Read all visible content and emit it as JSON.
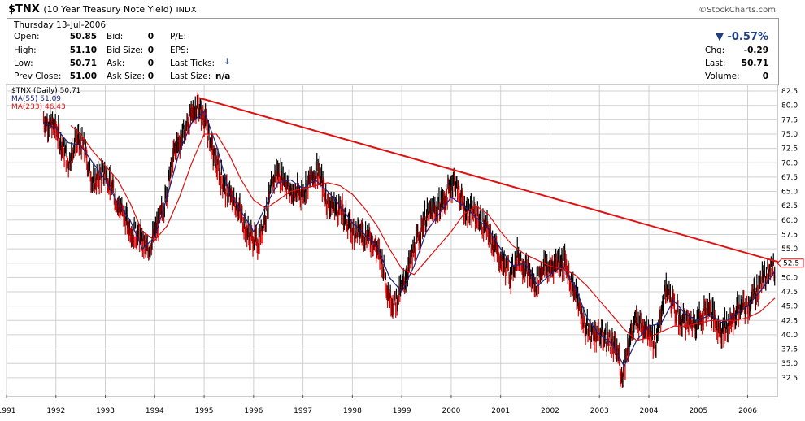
{
  "header": {
    "symbol": "$TNX",
    "name": "(10 Year Treasury Note Yield)",
    "exchange": "INDX",
    "brand": "©StockCharts.com"
  },
  "quote": {
    "date": "Thursday  13-Jul-2006",
    "open_label": "Open:",
    "open": "50.85",
    "high_label": "High:",
    "high": "51.10",
    "low_label": "Low:",
    "low": "50.71",
    "prev_close_label": "Prev Close:",
    "prev_close": "51.00",
    "bid_label": "Bid:",
    "bid": "0",
    "bid_size_label": "Bid Size:",
    "bid_size": "0",
    "ask_label": "Ask:",
    "ask": "0",
    "ask_size_label": "Ask Size:",
    "ask_size": "0",
    "pe_label": "P/E:",
    "eps_label": "EPS:",
    "last_ticks_label": "Last Ticks:",
    "last_size_label": "Last Size:",
    "last_size": "n/a",
    "change_pct": "▼ -0.57%",
    "chg_label": "Chg:",
    "chg": "-0.29",
    "last_label": "Last:",
    "last": "50.71",
    "volume_label": "Volume:",
    "volume": "0"
  },
  "legend": {
    "price": "$TNX (Daily) 50.71",
    "ma55": "MA(55) 51.09",
    "ma233": "MA(233) 46.43"
  },
  "colors": {
    "price_up": "#000000",
    "price_down": "#cc0000",
    "ma55": "#1a237e",
    "ma233": "#dd1111",
    "trendline": "#e01010",
    "last_marker": "#e01010",
    "grid": "#d0d0d0",
    "plot_bg": "#ffffff"
  },
  "chart_data": {
    "type": "line",
    "x_axis_label": "",
    "y_axis_label": "",
    "ylim": [
      29.5,
      83.5
    ],
    "xlim": [
      1991.0,
      2006.6
    ],
    "y_ticks": [
      32.5,
      35.0,
      37.5,
      40.0,
      42.5,
      45.0,
      47.5,
      50.0,
      52.5,
      55.0,
      57.5,
      60.0,
      62.5,
      65.0,
      67.5,
      70.0,
      72.5,
      75.0,
      77.5,
      80.0,
      82.5
    ],
    "x_ticks": [
      {
        "label": "1991",
        "x": 1991.0
      },
      {
        "label": "1992",
        "x": 1992.0
      },
      {
        "label": "1993",
        "x": 1993.0
      },
      {
        "label": "1994",
        "x": 1994.0
      },
      {
        "label": "1995",
        "x": 1995.0
      },
      {
        "label": "1996",
        "x": 1996.0
      },
      {
        "label": "1997",
        "x": 1997.0
      },
      {
        "label": "1998",
        "x": 1998.0
      },
      {
        "label": "1999",
        "x": 1999.0
      },
      {
        "label": "2000",
        "x": 2000.0
      },
      {
        "label": "2001",
        "x": 2001.0
      },
      {
        "label": "2002",
        "x": 2002.0
      },
      {
        "label": "2003",
        "x": 2003.0
      },
      {
        "label": "2004",
        "x": 2004.0
      },
      {
        "label": "2005",
        "x": 2005.0
      },
      {
        "label": "2006",
        "x": 2006.0
      }
    ],
    "last_value_label": "52.5",
    "last_value": 52.5,
    "series": [
      {
        "name": "$TNX",
        "x": [
          1991.75,
          1992.0,
          1992.25,
          1992.4,
          1992.55,
          1992.75,
          1993.0,
          1993.25,
          1993.5,
          1993.75,
          1993.85,
          1994.0,
          1994.2,
          1994.4,
          1994.6,
          1994.85,
          1995.0,
          1995.2,
          1995.45,
          1995.7,
          1995.9,
          1996.1,
          1996.3,
          1996.45,
          1996.6,
          1996.8,
          1997.0,
          1997.15,
          1997.3,
          1997.5,
          1997.8,
          1998.0,
          1998.2,
          1998.4,
          1998.6,
          1998.75,
          1998.85,
          1999.0,
          1999.2,
          1999.45,
          1999.7,
          1999.9,
          2000.05,
          2000.3,
          2000.5,
          2000.75,
          2001.0,
          2001.2,
          2001.35,
          2001.5,
          2001.7,
          2001.85,
          2002.0,
          2002.15,
          2002.3,
          2002.5,
          2002.7,
          2002.8,
          2003.0,
          2003.2,
          2003.4,
          2003.45,
          2003.6,
          2003.75,
          2004.0,
          2004.15,
          2004.3,
          2004.4,
          2004.6,
          2004.8,
          2005.0,
          2005.2,
          2005.45,
          2005.7,
          2005.8,
          2006.0,
          2006.2,
          2006.35,
          2006.45,
          2006.55
        ],
        "y": [
          77.5,
          76.0,
          70.0,
          74.0,
          73.0,
          66.5,
          68.5,
          63.0,
          58.5,
          56.5,
          54.5,
          57.5,
          63.0,
          72.0,
          75.5,
          80.0,
          78.0,
          71.0,
          65.0,
          62.0,
          57.5,
          56.0,
          63.0,
          68.5,
          67.5,
          64.5,
          65.0,
          67.0,
          69.0,
          63.0,
          61.5,
          58.0,
          58.0,
          56.5,
          53.0,
          46.5,
          45.5,
          48.0,
          53.5,
          60.0,
          62.0,
          64.0,
          67.0,
          61.5,
          61.0,
          58.0,
          53.0,
          50.5,
          54.0,
          51.5,
          48.5,
          52.0,
          51.5,
          53.0,
          52.5,
          47.5,
          41.5,
          40.5,
          40.0,
          39.0,
          36.0,
          32.5,
          39.0,
          42.5,
          41.0,
          38.0,
          47.0,
          47.5,
          43.0,
          42.0,
          42.5,
          45.0,
          40.5,
          42.5,
          44.5,
          45.0,
          48.0,
          50.5,
          52.5,
          50.7
        ]
      },
      {
        "name": "MA(55)",
        "x": [
          1991.75,
          1992.0,
          1992.25,
          1992.5,
          1992.75,
          1993.0,
          1993.25,
          1993.5,
          1993.75,
          1994.0,
          1994.25,
          1994.5,
          1994.75,
          1995.0,
          1995.25,
          1995.5,
          1995.75,
          1996.0,
          1996.25,
          1996.5,
          1996.75,
          1997.0,
          1997.25,
          1997.5,
          1997.75,
          1998.0,
          1998.25,
          1998.5,
          1998.75,
          1999.0,
          1999.25,
          1999.5,
          1999.75,
          2000.0,
          2000.25,
          2000.5,
          2000.75,
          2001.0,
          2001.25,
          2001.5,
          2001.75,
          2002.0,
          2002.25,
          2002.5,
          2002.75,
          2003.0,
          2003.25,
          2003.5,
          2003.75,
          2004.0,
          2004.25,
          2004.5,
          2004.75,
          2005.0,
          2005.25,
          2005.5,
          2005.75,
          2006.0,
          2006.25,
          2006.55
        ],
        "y": [
          77.0,
          76.0,
          73.5,
          73.0,
          70.0,
          67.0,
          63.0,
          60.0,
          55.0,
          57.0,
          64.0,
          72.0,
          77.0,
          79.0,
          73.0,
          65.0,
          61.5,
          58.0,
          62.5,
          66.5,
          67.0,
          65.5,
          67.0,
          65.0,
          62.5,
          59.5,
          57.5,
          55.5,
          50.0,
          47.5,
          52.0,
          58.0,
          61.0,
          64.0,
          62.5,
          60.5,
          58.5,
          55.0,
          52.0,
          52.5,
          48.5,
          50.5,
          52.0,
          48.5,
          43.0,
          40.0,
          38.5,
          34.5,
          39.0,
          41.5,
          42.0,
          46.0,
          43.5,
          42.5,
          43.5,
          42.0,
          43.5,
          45.0,
          47.5,
          51.1
        ]
      },
      {
        "name": "MA(233)",
        "x": [
          1992.3,
          1992.5,
          1992.75,
          1993.0,
          1993.25,
          1993.5,
          1993.75,
          1994.0,
          1994.25,
          1994.5,
          1994.75,
          1995.0,
          1995.25,
          1995.5,
          1995.75,
          1996.0,
          1996.25,
          1996.5,
          1996.75,
          1997.0,
          1997.25,
          1997.5,
          1997.75,
          1998.0,
          1998.25,
          1998.5,
          1998.75,
          1999.0,
          1999.25,
          1999.5,
          1999.75,
          2000.0,
          2000.25,
          2000.5,
          2000.75,
          2001.0,
          2001.25,
          2001.5,
          2001.75,
          2002.0,
          2002.25,
          2002.5,
          2002.75,
          2003.0,
          2003.25,
          2003.5,
          2003.75,
          2004.0,
          2004.25,
          2004.5,
          2004.75,
          2005.0,
          2005.25,
          2005.5,
          2005.75,
          2006.0,
          2006.25,
          2006.55
        ],
        "y": [
          76.5,
          75.0,
          72.0,
          69.5,
          67.0,
          63.0,
          58.0,
          56.5,
          59.0,
          64.0,
          70.0,
          75.0,
          75.0,
          71.5,
          67.0,
          63.5,
          62.0,
          63.5,
          65.0,
          65.5,
          66.0,
          66.5,
          66.0,
          64.5,
          62.0,
          59.0,
          55.0,
          51.5,
          50.5,
          53.0,
          55.5,
          58.0,
          61.0,
          62.5,
          61.0,
          58.0,
          55.5,
          54.0,
          53.0,
          52.0,
          51.5,
          50.5,
          48.5,
          46.0,
          43.5,
          41.0,
          39.0,
          39.5,
          40.5,
          41.5,
          41.5,
          42.0,
          42.5,
          42.5,
          42.5,
          43.0,
          44.0,
          46.4
        ]
      },
      {
        "name": "Trendline",
        "x": [
          1994.9,
          2006.7
        ],
        "y": [
          81.3,
          52.5
        ]
      }
    ]
  }
}
